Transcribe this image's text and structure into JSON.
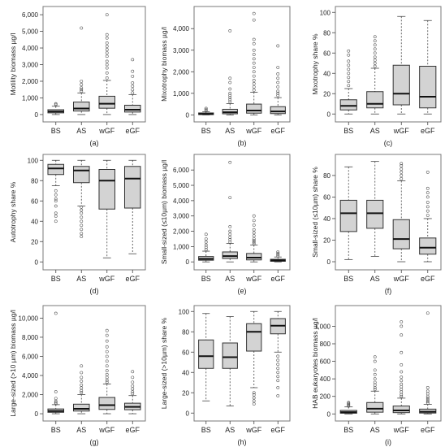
{
  "colors": {
    "box_fill": "#d3d3d3",
    "box_stroke": "#333333",
    "median": "#111111",
    "frame": "#7a7a7a"
  },
  "chart_data": [
    {
      "panel_id": "(a)",
      "type": "box",
      "ylabel": "Motility biomass µg/l",
      "categories": [
        "BS",
        "AS",
        "wGF",
        "eGF"
      ],
      "yticks": [
        0,
        1000,
        2000,
        3000,
        4000,
        5000,
        6000
      ],
      "ytick_labels": [
        "0",
        "1,000",
        "2,000",
        "3,000",
        "4,000",
        "5,000",
        "6,000"
      ],
      "ylim": [
        -150,
        6200
      ],
      "boxes": [
        {
          "min": 0,
          "q1": 100,
          "median": 180,
          "q3": 290,
          "max": 500,
          "outliers": [
            600,
            650
          ]
        },
        {
          "min": 0,
          "q1": 210,
          "median": 360,
          "q3": 750,
          "max": 1300,
          "outliers": [
            1400,
            1500,
            1600,
            1800,
            2000,
            5200
          ]
        },
        {
          "min": 0,
          "q1": 380,
          "median": 650,
          "q3": 1100,
          "max": 2050,
          "outliers": [
            2200,
            2500,
            2800,
            3000,
            3200,
            3500,
            3700,
            3900,
            4100,
            4300,
            4600,
            4800,
            6000
          ]
        },
        {
          "min": 0,
          "q1": 150,
          "median": 290,
          "q3": 560,
          "max": 1200,
          "outliers": [
            1300,
            1500,
            1700,
            1900,
            2300,
            2600,
            3300
          ]
        }
      ]
    },
    {
      "panel_id": "(b)",
      "type": "box",
      "ylabel": "Mixotrophy biomass µg/l",
      "categories": [
        "BS",
        "AS",
        "wGF",
        "eGF"
      ],
      "yticks": [
        0,
        1000,
        2000,
        3000,
        4000
      ],
      "ytick_labels": [
        "0",
        "1,000",
        "2,000",
        "3,000",
        "4,000"
      ],
      "ylim": [
        -100,
        4800
      ],
      "boxes": [
        {
          "min": 0,
          "q1": 15,
          "median": 40,
          "q3": 90,
          "max": 150,
          "outliers": [
            200,
            250,
            300
          ]
        },
        {
          "min": 0,
          "q1": 50,
          "median": 120,
          "q3": 260,
          "max": 520,
          "outliers": [
            600,
            700,
            800,
            900,
            1000,
            1200,
            1500,
            1700,
            3900
          ]
        },
        {
          "min": 0,
          "q1": 80,
          "median": 200,
          "q3": 500,
          "max": 1050,
          "outliers": [
            1150,
            1300,
            1450,
            1600,
            1800,
            2000,
            2200,
            2400,
            2600,
            2800,
            3000,
            3300,
            3500,
            4400,
            4700
          ]
        },
        {
          "min": 0,
          "q1": 60,
          "median": 160,
          "q3": 380,
          "max": 800,
          "outliers": [
            900,
            1000,
            1100,
            1300,
            1500,
            1700,
            1900,
            2200,
            3200
          ]
        }
      ]
    },
    {
      "panel_id": "(c)",
      "type": "box",
      "ylabel": "Mixotrophy share %",
      "categories": [
        "BS",
        "AS",
        "wGF",
        "eGF"
      ],
      "yticks": [
        0,
        20,
        40,
        60,
        80,
        100
      ],
      "ytick_labels": [
        "0",
        "20",
        "40",
        "60",
        "80",
        "100"
      ],
      "ylim": [
        -3,
        101
      ],
      "boxes": [
        {
          "min": 0,
          "q1": 4,
          "median": 8,
          "q3": 14,
          "max": 25,
          "outliers": [
            28,
            32,
            36,
            40,
            44,
            48,
            52,
            58,
            62
          ]
        },
        {
          "min": 0,
          "q1": 6,
          "median": 10,
          "q3": 22,
          "max": 45,
          "outliers": [
            47,
            50,
            53,
            56,
            60,
            64,
            68,
            72,
            76
          ]
        },
        {
          "min": 0,
          "q1": 9,
          "median": 20,
          "q3": 48,
          "max": 96,
          "outliers": []
        },
        {
          "min": 0,
          "q1": 6,
          "median": 17,
          "q3": 47,
          "max": 92,
          "outliers": []
        }
      ]
    },
    {
      "panel_id": "(d)",
      "type": "box",
      "ylabel": "Autotrophy share %",
      "categories": [
        "BS",
        "AS",
        "wGF",
        "eGF"
      ],
      "yticks": [
        0,
        20,
        40,
        60,
        80,
        100
      ],
      "ytick_labels": [
        "0",
        "20",
        "40",
        "60",
        "80",
        "100"
      ],
      "ylim": [
        -3,
        101
      ],
      "boxes": [
        {
          "min": 75,
          "q1": 86,
          "median": 92,
          "q3": 96,
          "max": 100,
          "outliers": [
            40,
            45,
            48,
            55,
            60,
            62,
            66,
            70
          ]
        },
        {
          "min": 55,
          "q1": 78,
          "median": 90,
          "q3": 94,
          "max": 100,
          "outliers": [
            25,
            28,
            32,
            36,
            40,
            44,
            48,
            51,
            54
          ]
        },
        {
          "min": 4,
          "q1": 52,
          "median": 80,
          "q3": 91,
          "max": 100,
          "outliers": []
        },
        {
          "min": 8,
          "q1": 53,
          "median": 82,
          "q3": 94,
          "max": 100,
          "outliers": []
        }
      ]
    },
    {
      "panel_id": "(e)",
      "type": "box",
      "ylabel": "Small-sized (≤10µm) biomass µg/l",
      "categories": [
        "BS",
        "AS",
        "wGF",
        "eGF"
      ],
      "yticks": [
        0,
        1000,
        2000,
        3000,
        4000,
        5000,
        6000
      ],
      "ytick_labels": [
        "0",
        "1,000",
        "2,000",
        "3,000",
        "4,000",
        "5,000",
        "6,000"
      ],
      "ylim": [
        -200,
        6700
      ],
      "boxes": [
        {
          "min": 0,
          "q1": 110,
          "median": 200,
          "q3": 350,
          "max": 700,
          "outliers": [
            800,
            950,
            1100,
            1300,
            1500,
            1800
          ]
        },
        {
          "min": 0,
          "q1": 220,
          "median": 380,
          "q3": 650,
          "max": 1200,
          "outliers": [
            1300,
            1450,
            1600,
            1800,
            2000,
            2300,
            4200,
            6500
          ]
        },
        {
          "min": 0,
          "q1": 130,
          "median": 280,
          "q3": 550,
          "max": 1100,
          "outliers": [
            1200,
            1300,
            1400,
            1500,
            1700,
            1900,
            2100,
            2400,
            2700,
            3000
          ]
        },
        {
          "min": 0,
          "q1": 40,
          "median": 90,
          "q3": 170,
          "max": 320,
          "outliers": [
            400,
            480,
            560,
            650
          ]
        }
      ]
    },
    {
      "panel_id": "(f)",
      "type": "box",
      "ylabel": "Small-sized (≤10µm) share %",
      "categories": [
        "BS",
        "AS",
        "wGF",
        "eGF"
      ],
      "yticks": [
        0,
        20,
        40,
        60,
        80
      ],
      "ytick_labels": [
        "0",
        "20",
        "40",
        "60",
        "80"
      ],
      "ylim": [
        -3,
        95
      ],
      "boxes": [
        {
          "min": 2,
          "q1": 28,
          "median": 45,
          "q3": 57,
          "max": 88,
          "outliers": []
        },
        {
          "min": 5,
          "q1": 31,
          "median": 45,
          "q3": 57,
          "max": 93,
          "outliers": []
        },
        {
          "min": 0,
          "q1": 12,
          "median": 21,
          "q3": 39,
          "max": 75,
          "outliers": [
            77,
            80,
            83,
            86,
            89,
            91
          ]
        },
        {
          "min": 0,
          "q1": 7,
          "median": 13,
          "q3": 22,
          "max": 40,
          "outliers": [
            43,
            47,
            51,
            55,
            60,
            64,
            68,
            83
          ]
        }
      ]
    },
    {
      "panel_id": "(g)",
      "type": "box",
      "ylabel": "Large-sized (>10 µm) biomass µg/l",
      "categories": [
        "BS",
        "AS",
        "wGF",
        "eGF"
      ],
      "yticks": [
        0,
        2000,
        4000,
        6000,
        8000,
        10000
      ],
      "ytick_labels": [
        "0",
        "2,000",
        "4,000",
        "6,000",
        "8,000",
        "10,000"
      ],
      "ylim": [
        -250,
        10800
      ],
      "boxes": [
        {
          "min": 0,
          "q1": 150,
          "median": 280,
          "q3": 500,
          "max": 950,
          "outliers": [
            1050,
            1150,
            1300,
            1600,
            2300,
            10500
          ]
        },
        {
          "min": 0,
          "q1": 280,
          "median": 520,
          "q3": 1000,
          "max": 2000,
          "outliers": [
            2200,
            2400,
            2700,
            3000,
            3400,
            3800,
            4300,
            5000
          ]
        },
        {
          "min": 0,
          "q1": 450,
          "median": 900,
          "q3": 1700,
          "max": 3100,
          "outliers": [
            3300,
            3500,
            3800,
            4100,
            4500,
            5000,
            5500,
            6000,
            6500,
            7000,
            7600,
            8200,
            8700
          ]
        },
        {
          "min": 0,
          "q1": 420,
          "median": 720,
          "q3": 1100,
          "max": 1900,
          "outliers": [
            2100,
            2300,
            2600,
            2900,
            3300,
            3800,
            4400
          ]
        }
      ]
    },
    {
      "panel_id": "(h)",
      "type": "box",
      "ylabel": "Large-sized (>10µm) share %",
      "categories": [
        "BS",
        "AS",
        "wGF",
        "eGF"
      ],
      "yticks": [
        0,
        20,
        40,
        60,
        80,
        100
      ],
      "ytick_labels": [
        "0",
        "20",
        "40",
        "60",
        "80",
        "100"
      ],
      "ylim": [
        -3,
        101
      ],
      "boxes": [
        {
          "min": 12,
          "q1": 44,
          "median": 56,
          "q3": 72,
          "max": 98,
          "outliers": []
        },
        {
          "min": 7,
          "q1": 44,
          "median": 55,
          "q3": 69,
          "max": 95,
          "outliers": []
        },
        {
          "min": 25,
          "q1": 61,
          "median": 80,
          "q3": 88,
          "max": 100,
          "outliers": [
            9,
            12,
            15,
            18,
            20
          ]
        },
        {
          "min": 60,
          "q1": 78,
          "median": 86,
          "q3": 93,
          "max": 100,
          "outliers": [
            17,
            25,
            32,
            36,
            40,
            44,
            48,
            52,
            56
          ]
        }
      ]
    },
    {
      "panel_id": "(i)",
      "type": "box",
      "ylabel": "HAB eukaryotes biomass µg/l",
      "categories": [
        "BS",
        "AS",
        "wGF",
        "eGF"
      ],
      "yticks": [
        0,
        200,
        400,
        600,
        800,
        1000
      ],
      "ytick_labels": [
        "0",
        "200",
        "400",
        "600",
        "800",
        "1,000"
      ],
      "ylim": [
        -25,
        1180
      ],
      "boxes": [
        {
          "min": 0,
          "q1": 8,
          "median": 20,
          "q3": 40,
          "max": 80,
          "outliers": [
            90,
            100,
            110,
            120,
            130
          ]
        },
        {
          "min": 0,
          "q1": 20,
          "median": 60,
          "q3": 130,
          "max": 260,
          "outliers": [
            280,
            300,
            330,
            360,
            400,
            450,
            500,
            600,
            650
          ]
        },
        {
          "min": 0,
          "q1": 15,
          "median": 40,
          "q3": 90,
          "max": 180,
          "outliers": [
            200,
            220,
            250,
            280,
            310,
            340,
            380,
            420,
            480,
            560,
            700,
            900,
            1000,
            1050
          ]
        },
        {
          "min": 0,
          "q1": 10,
          "median": 25,
          "q3": 55,
          "max": 110,
          "outliers": [
            125,
            140,
            160,
            180,
            200,
            230,
            260,
            300,
            1150
          ]
        }
      ]
    }
  ]
}
